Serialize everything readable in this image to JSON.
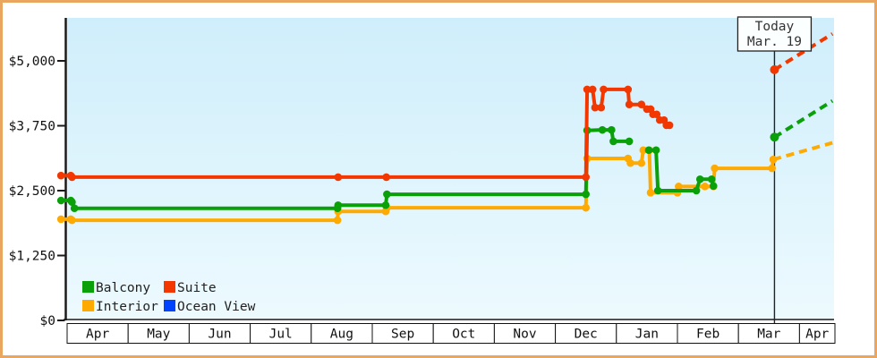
{
  "widget_title": "cruise-price-history",
  "colors": {
    "page_border": "#eaa65f",
    "plot_bg_top": "#cfeefb",
    "plot_bg_bottom": "#edfafe",
    "axis": "#1a1a1a",
    "month_box_bg": "#ffffff",
    "today_box_bg": "#fcffff",
    "today_text": "#333333"
  },
  "today_marker": {
    "line1": "Today",
    "line2": "Mar. 19",
    "month_position": 11.59
  },
  "legend": {
    "items": [
      {
        "label": "Balcony",
        "color": "#0aa00a"
      },
      {
        "label": "Suite",
        "color": "#f23800"
      },
      {
        "label": "Interior",
        "color": "#ffaa00"
      },
      {
        "label": "Ocean View",
        "color": "#0043ff"
      }
    ]
  },
  "chart_data": {
    "type": "line",
    "title": "",
    "xlabel": "",
    "ylabel": "",
    "ylim": [
      0,
      5860
    ],
    "grid": false,
    "legend_position": "bottom-left-inside",
    "x_axis": {
      "months": [
        "Apr",
        "May",
        "Jun",
        "Jul",
        "Aug",
        "Sep",
        "Oct",
        "Nov",
        "Dec",
        "Jan",
        "Feb",
        "Mar",
        "Apr"
      ]
    },
    "y_axis": {
      "ticks": [
        {
          "value": 0,
          "label": "$0"
        },
        {
          "value": 1250,
          "label": "$1,250"
        },
        {
          "value": 2500,
          "label": "$2,500"
        },
        {
          "value": 3750,
          "label": "$3,750"
        },
        {
          "value": 5000,
          "label": "$5,000"
        }
      ]
    },
    "series": [
      {
        "name": "Interior",
        "color": "#ffaa00",
        "solid_segments": [
          [
            [
              -0.1,
              1950
            ],
            [
              0.06,
              1950
            ],
            [
              0.08,
              1930
            ],
            [
              4.43,
              1930
            ],
            [
              4.44,
              2100
            ],
            [
              5.22,
              2100
            ],
            [
              5.24,
              2170
            ],
            [
              8.5,
              2170
            ],
            [
              8.52,
              3120
            ],
            [
              9.19,
              3120
            ],
            [
              9.23,
              3030
            ],
            [
              9.41,
              3030
            ],
            [
              9.44,
              3280
            ],
            [
              9.54,
              3280
            ],
            [
              9.56,
              2460
            ],
            [
              10.0,
              2460
            ],
            [
              10.02,
              2580
            ],
            [
              10.45,
              2580
            ],
            [
              10.59,
              2580
            ],
            [
              10.61,
              2930
            ],
            [
              11.55,
              2930
            ],
            [
              11.57,
              3100
            ]
          ]
        ],
        "today_point": null,
        "dashed_projection": [
          [
            11.57,
            3100
          ],
          [
            12.54,
            3420
          ]
        ]
      },
      {
        "name": "Balcony",
        "color": "#0aa00a",
        "solid_segments": [
          [
            [
              -0.1,
              2310
            ],
            [
              0.06,
              2310
            ],
            [
              0.08,
              2280
            ],
            [
              0.12,
              2160
            ],
            [
              4.43,
              2160
            ],
            [
              4.44,
              2220
            ],
            [
              5.22,
              2220
            ],
            [
              5.24,
              2430
            ],
            [
              8.5,
              2430
            ],
            [
              8.52,
              3660
            ],
            [
              8.77,
              3670
            ],
            [
              8.92,
              3670
            ],
            [
              8.95,
              3450
            ],
            [
              9.21,
              3450
            ]
          ],
          [
            [
              9.53,
              3280
            ],
            [
              9.65,
              3280
            ],
            [
              9.68,
              2500
            ],
            [
              10.31,
              2500
            ],
            [
              10.37,
              2720
            ],
            [
              10.56,
              2720
            ],
            [
              10.59,
              2590
            ]
          ]
        ],
        "today_point": [
          11.59,
          3530
        ],
        "dashed_projection": [
          [
            11.59,
            3530
          ],
          [
            12.54,
            4230
          ]
        ]
      },
      {
        "name": "Suite",
        "color": "#f23800",
        "solid_segments": [
          [
            [
              -0.1,
              2790
            ],
            [
              0.06,
              2790
            ],
            [
              0.08,
              2760
            ],
            [
              4.44,
              2760
            ],
            [
              5.23,
              2760
            ],
            [
              8.5,
              2760
            ],
            [
              8.52,
              4450
            ],
            [
              8.61,
              4450
            ],
            [
              8.65,
              4100
            ],
            [
              8.75,
              4100
            ],
            [
              8.79,
              4450
            ],
            [
              9.19,
              4450
            ],
            [
              9.21,
              4160
            ],
            [
              9.41,
              4160
            ],
            [
              9.5,
              4070
            ],
            [
              9.56,
              4070
            ],
            [
              9.6,
              3970
            ],
            [
              9.66,
              3970
            ],
            [
              9.71,
              3860
            ],
            [
              9.78,
              3860
            ],
            [
              9.82,
              3760
            ],
            [
              9.87,
              3760
            ]
          ]
        ],
        "today_point": [
          11.59,
          4830
        ],
        "dashed_projection": [
          [
            11.59,
            4830
          ],
          [
            12.54,
            5520
          ]
        ]
      },
      {
        "name": "Ocean View",
        "color": "#0043ff",
        "solid_segments": [],
        "today_point": null,
        "dashed_projection": null
      }
    ]
  }
}
